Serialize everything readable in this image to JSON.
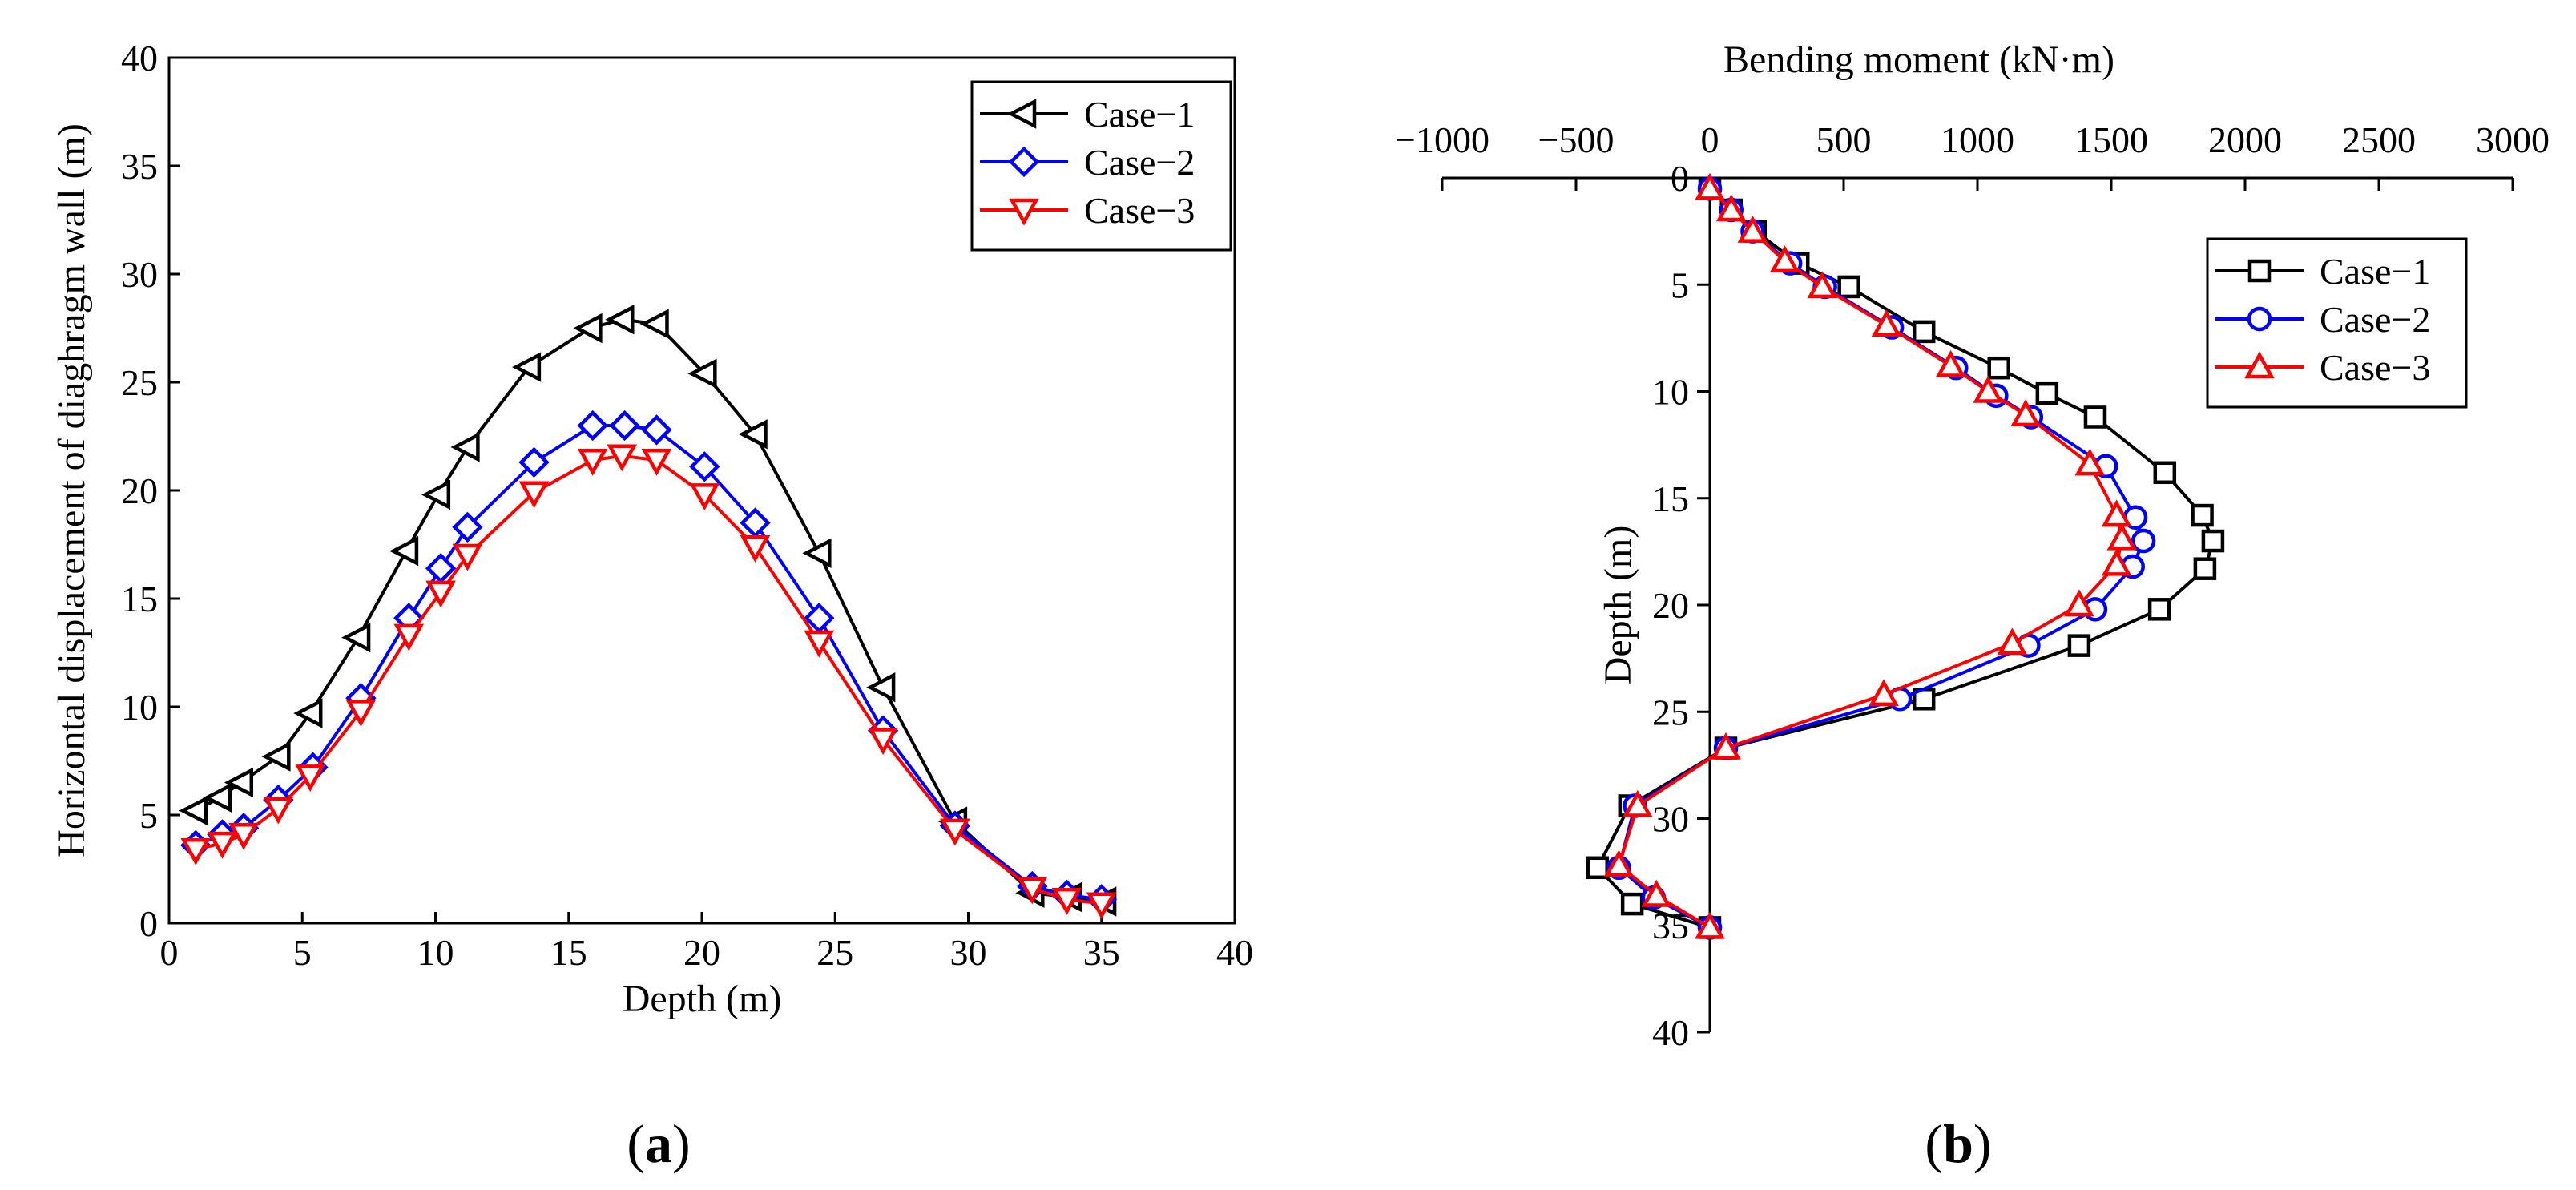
{
  "chart_data": [
    {
      "id": "a",
      "type": "line",
      "panel_label": "(a)",
      "panel_label_parts": [
        "(",
        "a",
        ")"
      ],
      "title": "",
      "xlabel": "Depth (m)",
      "ylabel": "Horizontal displacement of diaghragm wall (m)",
      "xlim": [
        0,
        40
      ],
      "ylim": [
        0,
        40
      ],
      "xticks": [
        0,
        5,
        10,
        15,
        20,
        25,
        30,
        35,
        40
      ],
      "yticks": [
        0,
        5,
        10,
        15,
        20,
        25,
        30,
        35,
        40
      ],
      "xtick_labels": [
        "0",
        "5",
        "10",
        "15",
        "20",
        "25",
        "30",
        "35",
        "40"
      ],
      "ytick_labels": [
        "0",
        "5",
        "10",
        "15",
        "20",
        "25",
        "30",
        "35",
        "40"
      ],
      "grid": false,
      "legend_position": "top-right",
      "series": [
        {
          "name": "Case−1",
          "color": "#000000",
          "marker": "triangle-left",
          "x": [
            1.0,
            1.9,
            2.7,
            4.1,
            5.3,
            7.1,
            8.9,
            10.1,
            11.2,
            13.5,
            15.8,
            17.0,
            18.3,
            20.1,
            22.0,
            24.4,
            26.8,
            29.5,
            32.4,
            33.8,
            35.1
          ],
          "y": [
            5.2,
            5.8,
            6.5,
            7.7,
            9.7,
            13.2,
            17.2,
            19.8,
            22.0,
            25.7,
            27.5,
            27.9,
            27.7,
            25.4,
            22.6,
            17.1,
            10.9,
            4.7,
            1.4,
            1.2,
            1.0
          ]
        },
        {
          "name": "Case−2",
          "color": "#0000ff",
          "marker": "diamond",
          "x": [
            1.0,
            2.0,
            2.8,
            4.1,
            5.4,
            7.2,
            9.0,
            10.2,
            11.2,
            13.7,
            15.9,
            17.1,
            18.3,
            20.1,
            22.0,
            24.4,
            26.8,
            29.5,
            32.4,
            33.7,
            35.0
          ],
          "y": [
            3.6,
            4.1,
            4.4,
            5.7,
            7.2,
            10.4,
            14.1,
            16.4,
            18.3,
            21.3,
            23.0,
            23.0,
            22.8,
            21.1,
            18.5,
            14.1,
            8.9,
            4.5,
            1.7,
            1.3,
            1.1
          ]
        },
        {
          "name": "Case−3",
          "color": "#ff0000",
          "marker": "triangle-down",
          "x": [
            1.0,
            2.0,
            2.8,
            4.1,
            5.3,
            7.2,
            9.0,
            10.2,
            11.2,
            13.7,
            15.9,
            17.0,
            18.3,
            20.1,
            22.0,
            24.4,
            26.8,
            29.5,
            32.4,
            33.7,
            35.0
          ],
          "y": [
            3.4,
            3.7,
            4.1,
            5.3,
            6.8,
            9.8,
            13.3,
            15.3,
            17.0,
            19.9,
            21.4,
            21.6,
            21.4,
            19.8,
            17.4,
            13.0,
            8.5,
            4.3,
            1.6,
            1.1,
            0.9
          ]
        }
      ]
    },
    {
      "id": "b",
      "type": "line",
      "panel_label": "(b)",
      "panel_label_parts": [
        "(",
        "b",
        ")"
      ],
      "title": "",
      "xlabel": "Bending moment (kN·m)",
      "ylabel": "Depth (m)",
      "xlim": [
        -1000,
        3000
      ],
      "ylim": [
        40,
        0
      ],
      "xticks": [
        -1000,
        -500,
        0,
        500,
        1000,
        1500,
        2000,
        2500,
        3000
      ],
      "yticks": [
        0,
        5,
        10,
        15,
        20,
        25,
        30,
        35,
        40
      ],
      "xtick_labels": [
        "−1000",
        "−500",
        "0",
        "500",
        "1000",
        "1500",
        "2000",
        "2500",
        "3000"
      ],
      "ytick_labels": [
        "0",
        "5",
        "10",
        "15",
        "20",
        "25",
        "30",
        "35",
        "40"
      ],
      "grid": false,
      "legend_position": "top-right",
      "series": [
        {
          "name": "Case−1",
          "color": "#000000",
          "marker": "square",
          "x": [
            0,
            80,
            170,
            330,
            520,
            800,
            1080,
            1260,
            1440,
            1700,
            1840,
            1880,
            1850,
            1680,
            1380,
            800,
            60,
            -300,
            -420,
            -290,
            0
          ],
          "y": [
            0.5,
            1.5,
            2.5,
            4.0,
            5.1,
            7.2,
            8.9,
            10.1,
            11.2,
            13.8,
            15.8,
            17.0,
            18.3,
            20.2,
            21.9,
            24.4,
            26.7,
            29.4,
            32.3,
            34.0,
            35.1
          ]
        },
        {
          "name": "Case−2",
          "color": "#0000ff",
          "marker": "circle",
          "x": [
            0,
            80,
            160,
            300,
            430,
            680,
            920,
            1070,
            1200,
            1480,
            1590,
            1620,
            1580,
            1440,
            1190,
            710,
            60,
            -280,
            -340,
            -210,
            0
          ],
          "y": [
            0.5,
            1.5,
            2.5,
            4.0,
            5.1,
            7.0,
            8.9,
            10.2,
            11.2,
            13.5,
            15.9,
            17.0,
            18.2,
            20.2,
            21.9,
            24.4,
            26.7,
            29.4,
            32.3,
            33.7,
            35.1
          ]
        },
        {
          "name": "Case−3",
          "color": "#ff0000",
          "marker": "triangle-up",
          "x": [
            0,
            80,
            160,
            280,
            420,
            660,
            900,
            1040,
            1180,
            1420,
            1520,
            1540,
            1520,
            1380,
            1130,
            650,
            60,
            -270,
            -340,
            -200,
            0
          ],
          "y": [
            0.5,
            1.5,
            2.5,
            3.9,
            5.1,
            6.9,
            8.8,
            10.0,
            11.1,
            13.4,
            15.8,
            16.9,
            18.1,
            20.0,
            21.8,
            24.2,
            26.7,
            29.4,
            32.2,
            33.6,
            35.1
          ]
        }
      ]
    }
  ]
}
